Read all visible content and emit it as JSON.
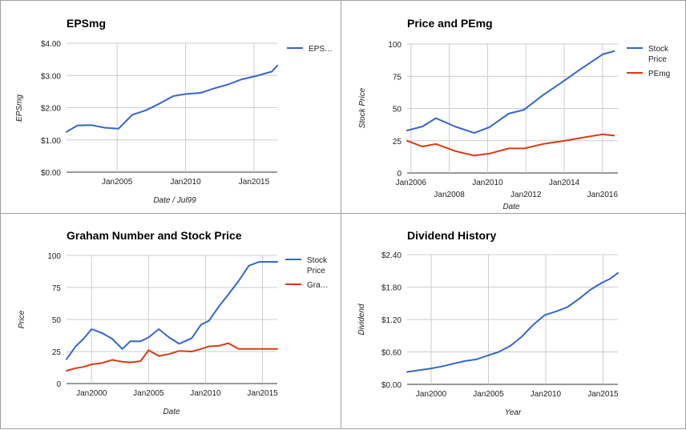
{
  "charts": [
    {
      "title": "EPSmg",
      "type": "line",
      "xlabel": "Date / Jul99",
      "ylabel": "EPSmg",
      "ylim": [
        0,
        4
      ],
      "yticks": [
        "$0.00",
        "$1.00",
        "$2.00",
        "$3.00",
        "$4.00"
      ],
      "xlim": [
        2001.3,
        2016.7
      ],
      "xticks": [
        {
          "v": 2005,
          "label": "Jan2005"
        },
        {
          "v": 2010,
          "label": "Jan2010"
        },
        {
          "v": 2015,
          "label": "Jan2015"
        }
      ],
      "series": [
        {
          "name": "EPS…",
          "color": "#3366cc",
          "x": [
            2001.3,
            2002.1,
            2003.1,
            2004.1,
            2005.1,
            2006.1,
            2007.1,
            2008.1,
            2009.1,
            2010.1,
            2011.1,
            2012.1,
            2013.1,
            2014.1,
            2015.1,
            2016.3,
            2016.7
          ],
          "y": [
            1.25,
            1.45,
            1.46,
            1.38,
            1.35,
            1.78,
            1.92,
            2.13,
            2.36,
            2.43,
            2.46,
            2.6,
            2.72,
            2.88,
            2.98,
            3.12,
            3.31
          ]
        }
      ]
    },
    {
      "title": "Price and PEmg",
      "type": "line",
      "xlabel": "Date",
      "ylabel": "Stock Price",
      "ylim": [
        0,
        100
      ],
      "yticks": [
        "0",
        "25",
        "50",
        "75",
        "100"
      ],
      "xlim": [
        2005.8,
        2016.8
      ],
      "xticks": [
        {
          "v": 2006,
          "label": "Jan2006",
          "row": 1
        },
        {
          "v": 2008,
          "label": "Jan2008",
          "row": 2
        },
        {
          "v": 2010,
          "label": "Jan2010",
          "row": 1
        },
        {
          "v": 2012,
          "label": "Jan2012",
          "row": 2
        },
        {
          "v": 2014,
          "label": "Jan2014",
          "row": 1
        },
        {
          "v": 2016,
          "label": "Jan2016",
          "row": 2
        }
      ],
      "series": [
        {
          "name": "Stock Price",
          "color": "#3366cc",
          "x": [
            2005.8,
            2006.6,
            2007.3,
            2008.3,
            2009.3,
            2010.1,
            2011.1,
            2011.9,
            2012.9,
            2013.8,
            2014.8,
            2016.0,
            2016.6
          ],
          "y": [
            33,
            36,
            42.5,
            36,
            31,
            35.5,
            46,
            49,
            60.5,
            69.5,
            80,
            92,
            94.5
          ]
        },
        {
          "name": "PEmg",
          "color": "#dc3912",
          "x": [
            2005.8,
            2006.6,
            2007.3,
            2008.3,
            2009.3,
            2010.1,
            2011.1,
            2011.9,
            2012.9,
            2013.8,
            2014.8,
            2016.0,
            2016.6
          ],
          "y": [
            25,
            20.5,
            22.5,
            17,
            13.5,
            15,
            19,
            19,
            22.5,
            24.5,
            27,
            30,
            29
          ]
        }
      ]
    },
    {
      "title": "Graham Number and Stock Price",
      "type": "line",
      "xlabel": "Date",
      "ylabel": "Price",
      "ylim": [
        0,
        100
      ],
      "yticks": [
        "0",
        "25",
        "50",
        "75",
        "100"
      ],
      "xlim": [
        1997.8,
        2016.3
      ],
      "xticks": [
        {
          "v": 2000,
          "label": "Jan2000"
        },
        {
          "v": 2005,
          "label": "Jan2005"
        },
        {
          "v": 2010,
          "label": "Jan2010"
        },
        {
          "v": 2015,
          "label": "Jan2015"
        }
      ],
      "series": [
        {
          "name": "Stock Price",
          "color": "#3366cc",
          "x": [
            1997.8,
            1998.6,
            1999.3,
            2000.0,
            2000.9,
            2001.8,
            2002.7,
            2003.4,
            2004.3,
            2005.0,
            2005.9,
            2006.8,
            2007.7,
            2008.8,
            2009.6,
            2010.3,
            2011.2,
            2012.0,
            2012.9,
            2013.8,
            2014.7,
            2015.5,
            2016.3
          ],
          "y": [
            19,
            29,
            35,
            42.5,
            39.5,
            35,
            27,
            33,
            33,
            36,
            42.5,
            36,
            31,
            35.5,
            46,
            49,
            60.5,
            69.5,
            80,
            92,
            95,
            95,
            95
          ]
        },
        {
          "name": "Gra…",
          "color": "#dc3912",
          "x": [
            1997.8,
            1998.6,
            1999.3,
            2000.0,
            2000.9,
            2001.8,
            2002.7,
            2003.4,
            2004.3,
            2005.0,
            2005.9,
            2006.8,
            2007.7,
            2008.8,
            2009.6,
            2010.3,
            2011.2,
            2012.0,
            2012.9,
            2013.8,
            2014.7,
            2015.5,
            2016.3
          ],
          "y": [
            10,
            12,
            13,
            15,
            16,
            18.5,
            17,
            16.5,
            17.5,
            26,
            21.5,
            23,
            25.5,
            25,
            27,
            29,
            29.5,
            31.5,
            27,
            27,
            27,
            27,
            27
          ]
        }
      ]
    },
    {
      "title": "Dividend History",
      "type": "line",
      "xlabel": "Year",
      "ylabel": "Dividend",
      "ylim": [
        0,
        2.4
      ],
      "yticks": [
        "$0.00",
        "$0.60",
        "$1.20",
        "$1.80",
        "$2.40"
      ],
      "xlim": [
        1997.9,
        2016.3
      ],
      "xticks": [
        {
          "v": 2000,
          "label": "Jan2000"
        },
        {
          "v": 2005,
          "label": "Jan2005"
        },
        {
          "v": 2010,
          "label": "Jan2010"
        },
        {
          "v": 2015,
          "label": "Jan2015"
        }
      ],
      "series": [
        {
          "name": "",
          "color": "#3366cc",
          "x": [
            1997.9,
            1998.9,
            1999.9,
            2000.9,
            2001.9,
            2002.9,
            2003.9,
            2004.9,
            2005.9,
            2006.9,
            2007.9,
            2008.9,
            2009.9,
            2010.9,
            2011.9,
            2012.9,
            2013.9,
            2014.9,
            2015.6,
            2016.3
          ],
          "y": [
            0.23,
            0.26,
            0.29,
            0.33,
            0.38,
            0.43,
            0.46,
            0.53,
            0.6,
            0.71,
            0.88,
            1.1,
            1.28,
            1.35,
            1.43,
            1.58,
            1.75,
            1.88,
            1.95,
            2.06
          ]
        }
      ]
    }
  ]
}
